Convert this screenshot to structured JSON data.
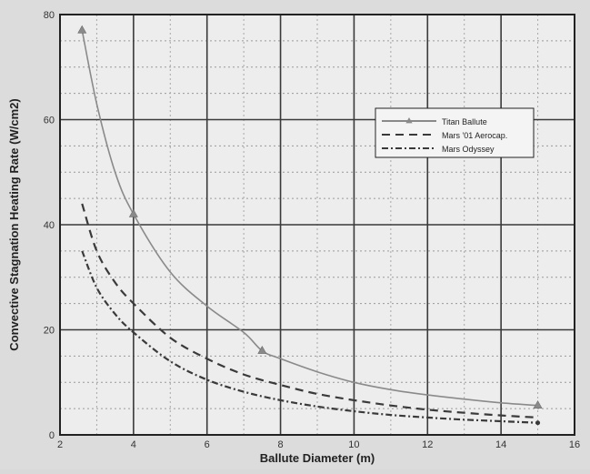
{
  "chart_data": {
    "type": "line",
    "title": "",
    "xlabel": "Ballute Diameter (m)",
    "ylabel": "Convective Stagnation Heating Rate (W/cm2)",
    "xlim": [
      2,
      16
    ],
    "ylim": [
      0,
      80
    ],
    "x_ticks": [
      2,
      4,
      6,
      8,
      10,
      12,
      14,
      16
    ],
    "y_ticks": [
      0,
      20,
      40,
      60,
      80
    ],
    "grid": true,
    "legend_position": "upper-right",
    "series": [
      {
        "name": "Titan Ballute",
        "style": "solid-triangle",
        "color": "#8a8a8a",
        "x": [
          2.6,
          3.0,
          3.5,
          4.0,
          5.0,
          6.0,
          7.0,
          7.5,
          8.0,
          9.0,
          10.0,
          11.0,
          12.0,
          13.0,
          14.0,
          15.0
        ],
        "y": [
          77,
          63,
          50,
          42,
          31,
          24.5,
          19.5,
          16,
          14.5,
          12,
          10,
          8.6,
          7.6,
          6.8,
          6.1,
          5.6
        ]
      },
      {
        "name": "Mars '01 Aerocap.",
        "style": "dashed",
        "color": "#3a3a3a",
        "x": [
          2.6,
          3.0,
          3.5,
          4.0,
          5.0,
          6.0,
          7.0,
          8.0,
          9.0,
          10.0,
          11.0,
          12.0,
          13.0,
          14.0,
          15.0
        ],
        "y": [
          44,
          35,
          29,
          25,
          18.5,
          14.5,
          11.5,
          9.5,
          7.8,
          6.6,
          5.6,
          4.8,
          4.2,
          3.7,
          3.3
        ]
      },
      {
        "name": "Mars Odyssey",
        "style": "dash-dot",
        "color": "#3a3a3a",
        "x": [
          2.6,
          3.0,
          3.5,
          4.0,
          5.0,
          6.0,
          7.0,
          8.0,
          9.0,
          10.0,
          11.0,
          12.0,
          13.0,
          14.0,
          15.0
        ],
        "y": [
          35,
          28,
          23,
          19.5,
          14,
          10.5,
          8.2,
          6.6,
          5.4,
          4.5,
          3.8,
          3.3,
          2.9,
          2.6,
          2.3
        ]
      }
    ]
  }
}
